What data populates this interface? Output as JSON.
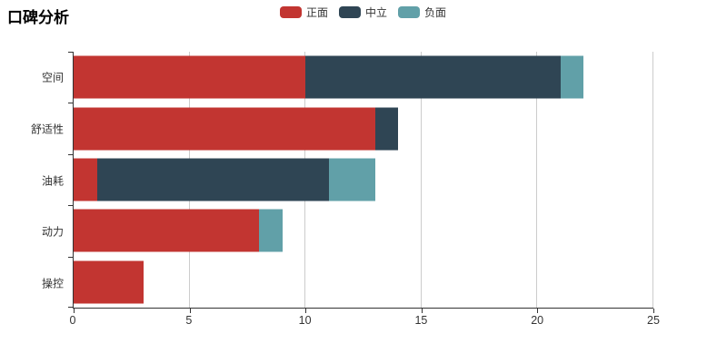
{
  "title": "口碑分析",
  "legend": {
    "items": [
      {
        "label": "正面",
        "color": "#c23531"
      },
      {
        "label": "中立",
        "color": "#2f4554"
      },
      {
        "label": "负面",
        "color": "#61a0a8"
      }
    ]
  },
  "axis": {
    "line_color": "#333333",
    "grid_color": "#cccccc",
    "label_color": "#333333"
  },
  "chart_data": {
    "type": "bar",
    "orientation": "horizontal",
    "stacked": true,
    "title": "口碑分析",
    "categories": [
      "空间",
      "舒适性",
      "油耗",
      "动力",
      "操控"
    ],
    "series": [
      {
        "name": "正面",
        "color": "#c23531",
        "values": [
          10,
          13,
          1,
          8,
          3
        ]
      },
      {
        "name": "中立",
        "color": "#2f4554",
        "values": [
          11,
          1,
          10,
          0,
          0
        ]
      },
      {
        "name": "负面",
        "color": "#61a0a8",
        "values": [
          1,
          0,
          2,
          1,
          0
        ]
      }
    ],
    "totals": [
      22,
      14,
      13,
      9,
      3
    ],
    "xlim": [
      0,
      25
    ],
    "x_ticks": [
      0,
      5,
      10,
      15,
      20,
      25
    ],
    "xlabel": "",
    "ylabel": "",
    "grid": true,
    "legend_position": "top"
  }
}
